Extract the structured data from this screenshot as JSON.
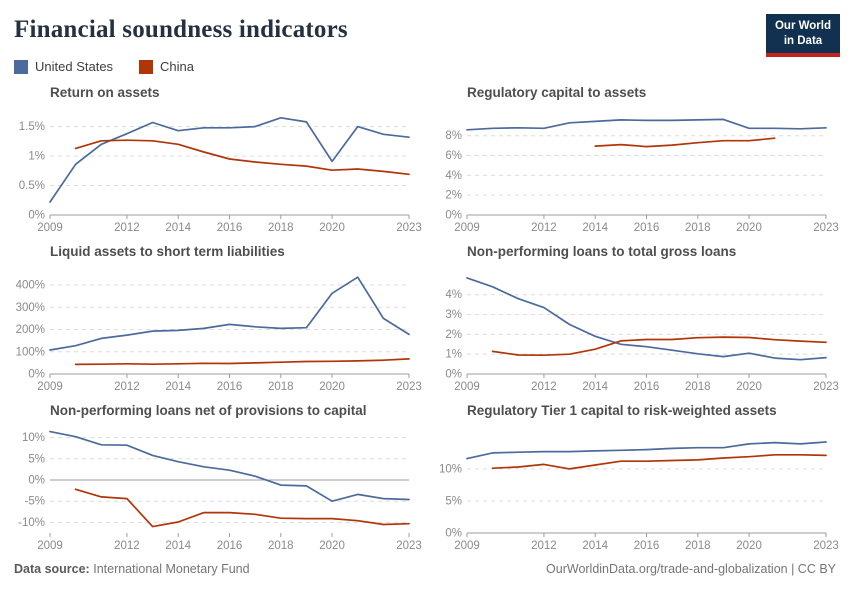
{
  "page": {
    "title": "Financial soundness indicators",
    "logo": {
      "line1": "Our World",
      "line2": "in Data",
      "bg": "#12304f",
      "bar": "#c0261c"
    },
    "footer": {
      "source_label": "Data source:",
      "source_value": "International Monetary Fund",
      "link": "OurWorldinData.org/trade-and-globalization | CC BY"
    }
  },
  "legend": [
    {
      "label": "United States",
      "color": "#4C6A9C"
    },
    {
      "label": "China",
      "color": "#B13507"
    }
  ],
  "chart_data": [
    {
      "type": "line",
      "title": "Return on assets",
      "years": [
        2009,
        2010,
        2011,
        2012,
        2013,
        2014,
        2015,
        2016,
        2017,
        2018,
        2019,
        2020,
        2021,
        2022,
        2023
      ],
      "xticks": [
        2009,
        2012,
        2014,
        2016,
        2018,
        2020,
        2023
      ],
      "ylim": [
        0,
        1.85
      ],
      "yticks": [
        {
          "v": 0,
          "label": "0%"
        },
        {
          "v": 0.5,
          "label": "0.5%"
        },
        {
          "v": 1,
          "label": "1%"
        },
        {
          "v": 1.5,
          "label": "1.5%"
        }
      ],
      "series": [
        {
          "name": "United States",
          "color": "#4C6A9C",
          "values": [
            0.22,
            0.86,
            1.2,
            1.38,
            1.57,
            1.43,
            1.48,
            1.48,
            1.5,
            1.65,
            1.58,
            0.91,
            1.5,
            1.37,
            1.32
          ]
        },
        {
          "name": "China",
          "color": "#B13507",
          "values": [
            null,
            1.13,
            1.26,
            1.27,
            1.26,
            1.2,
            1.07,
            0.95,
            0.9,
            0.86,
            0.83,
            0.76,
            0.78,
            0.74,
            0.69
          ]
        }
      ]
    },
    {
      "type": "line",
      "title": "Regulatory capital to assets",
      "years": [
        2009,
        2010,
        2011,
        2012,
        2013,
        2014,
        2015,
        2016,
        2017,
        2018,
        2019,
        2020,
        2021,
        2022,
        2023
      ],
      "xticks": [
        2009,
        2012,
        2014,
        2016,
        2018,
        2020,
        2023
      ],
      "ylim": [
        0,
        11
      ],
      "yticks": [
        {
          "v": 0,
          "label": "0%"
        },
        {
          "v": 2,
          "label": "2%"
        },
        {
          "v": 4,
          "label": "4%"
        },
        {
          "v": 6,
          "label": "6%"
        },
        {
          "v": 8,
          "label": "8%"
        }
      ],
      "series": [
        {
          "name": "United States",
          "color": "#4C6A9C",
          "values": [
            8.6,
            8.75,
            8.8,
            8.75,
            9.3,
            9.45,
            9.6,
            9.55,
            9.55,
            9.6,
            9.65,
            8.75,
            8.75,
            8.7,
            8.8
          ]
        },
        {
          "name": "China",
          "color": "#B13507",
          "values": [
            null,
            null,
            null,
            null,
            null,
            6.95,
            7.1,
            6.9,
            7.05,
            7.3,
            7.5,
            7.5,
            7.75,
            null,
            null
          ]
        }
      ]
    },
    {
      "type": "line",
      "title": "Liquid assets to short term liabilities",
      "years": [
        2009,
        2010,
        2011,
        2012,
        2013,
        2014,
        2015,
        2016,
        2017,
        2018,
        2019,
        2020,
        2021,
        2022,
        2023
      ],
      "xticks": [
        2009,
        2012,
        2014,
        2016,
        2018,
        2020,
        2023
      ],
      "ylim": [
        0,
        490
      ],
      "yticks": [
        {
          "v": 0,
          "label": "0%"
        },
        {
          "v": 100,
          "label": "100%"
        },
        {
          "v": 200,
          "label": "200%"
        },
        {
          "v": 300,
          "label": "300%"
        },
        {
          "v": 400,
          "label": "400%"
        }
      ],
      "series": [
        {
          "name": "United States",
          "color": "#4C6A9C",
          "values": [
            108,
            127,
            160,
            175,
            193,
            196,
            205,
            223,
            212,
            205,
            208,
            363,
            435,
            250,
            178
          ]
        },
        {
          "name": "China",
          "color": "#B13507",
          "values": [
            null,
            43,
            44,
            46,
            44,
            46,
            48,
            47,
            50,
            53,
            56,
            57,
            59,
            62,
            68
          ]
        }
      ]
    },
    {
      "type": "line",
      "title": "Non-performing loans to total gross loans",
      "years": [
        2009,
        2010,
        2011,
        2012,
        2013,
        2014,
        2015,
        2016,
        2017,
        2018,
        2019,
        2020,
        2021,
        2022,
        2023
      ],
      "xticks": [
        2009,
        2012,
        2014,
        2016,
        2018,
        2020,
        2023
      ],
      "ylim": [
        0,
        5.5
      ],
      "yticks": [
        {
          "v": 0,
          "label": "0%"
        },
        {
          "v": 1,
          "label": "1%"
        },
        {
          "v": 2,
          "label": "2%"
        },
        {
          "v": 3,
          "label": "3%"
        },
        {
          "v": 4,
          "label": "4%"
        }
      ],
      "series": [
        {
          "name": "United States",
          "color": "#4C6A9C",
          "values": [
            4.85,
            4.4,
            3.8,
            3.35,
            2.5,
            1.9,
            1.5,
            1.38,
            1.2,
            1.02,
            0.88,
            1.05,
            0.8,
            0.72,
            0.83
          ]
        },
        {
          "name": "China",
          "color": "#B13507",
          "values": [
            null,
            1.14,
            0.96,
            0.95,
            1.0,
            1.25,
            1.67,
            1.74,
            1.74,
            1.83,
            1.86,
            1.84,
            1.73,
            1.66,
            1.6
          ]
        }
      ]
    },
    {
      "type": "line",
      "title": "Non-performing loans net of provisions to capital",
      "years": [
        2009,
        2010,
        2011,
        2012,
        2013,
        2014,
        2015,
        2016,
        2017,
        2018,
        2019,
        2020,
        2021,
        2022,
        2023
      ],
      "xticks": [
        2009,
        2012,
        2014,
        2016,
        2018,
        2020,
        2023
      ],
      "ylim": [
        -12.5,
        13.2
      ],
      "yticks": [
        {
          "v": -10,
          "label": "-10%"
        },
        {
          "v": -5,
          "label": "-5%"
        },
        {
          "v": 0,
          "label": "0%"
        },
        {
          "v": 5,
          "label": "5%"
        },
        {
          "v": 10,
          "label": "10%"
        }
      ],
      "series": [
        {
          "name": "United States",
          "color": "#4C6A9C",
          "values": [
            11.4,
            10.2,
            8.3,
            8.2,
            5.8,
            4.3,
            3.1,
            2.3,
            0.9,
            -1.2,
            -1.4,
            -5.0,
            -3.4,
            -4.4,
            -4.6
          ]
        },
        {
          "name": "China",
          "color": "#B13507",
          "values": [
            null,
            -2.2,
            -4.0,
            -4.4,
            -11.0,
            -9.9,
            -7.7,
            -7.7,
            -8.1,
            -9.0,
            -9.1,
            -9.1,
            -9.6,
            -10.5,
            -10.3
          ]
        }
      ]
    },
    {
      "type": "line",
      "title": "Regulatory Tier 1 capital to risk-weighted assets",
      "years": [
        2009,
        2010,
        2011,
        2012,
        2013,
        2014,
        2015,
        2016,
        2017,
        2018,
        2019,
        2020,
        2021,
        2022,
        2023
      ],
      "xticks": [
        2009,
        2012,
        2014,
        2016,
        2018,
        2020,
        2023
      ],
      "ylim": [
        0,
        17
      ],
      "yticks": [
        {
          "v": 0,
          "label": "0%"
        },
        {
          "v": 5,
          "label": "5%"
        },
        {
          "v": 10,
          "label": "10%"
        }
      ],
      "series": [
        {
          "name": "United States",
          "color": "#4C6A9C",
          "values": [
            11.6,
            12.5,
            12.6,
            12.7,
            12.7,
            12.8,
            12.9,
            13.0,
            13.2,
            13.3,
            13.3,
            13.9,
            14.1,
            13.9,
            14.2
          ]
        },
        {
          "name": "China",
          "color": "#B13507",
          "values": [
            null,
            10.1,
            10.3,
            10.7,
            10.0,
            10.6,
            11.2,
            11.2,
            11.3,
            11.4,
            11.7,
            11.9,
            12.2,
            12.2,
            12.1
          ]
        }
      ]
    }
  ]
}
